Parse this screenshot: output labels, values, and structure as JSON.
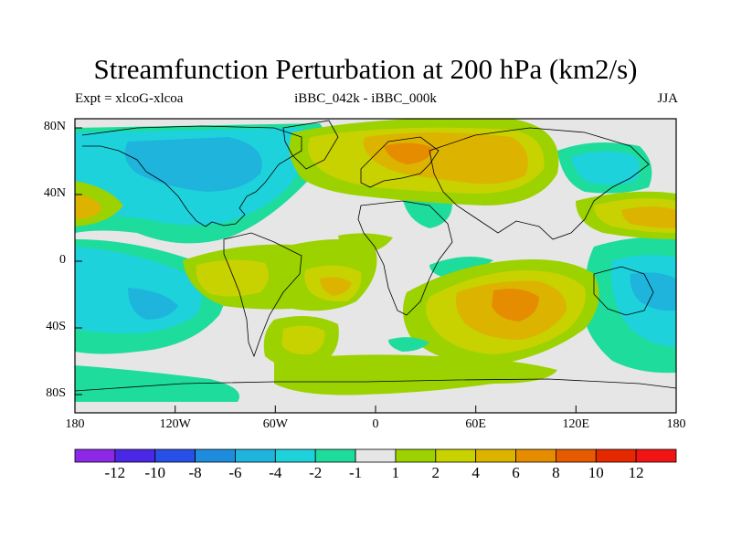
{
  "title": "Streamfunction Perturbation at 200 hPa (km2/s)",
  "subtitle_left": "Expt = xlcoG-xlcoa",
  "subtitle_center": "iBBC_042k - iBBC_000k",
  "subtitle_right": "JJA",
  "lat_labels": [
    "80N",
    "40N",
    "0",
    "40S",
    "80S"
  ],
  "lon_labels": [
    "180",
    "120W",
    "60W",
    "0",
    "60E",
    "120E",
    "180"
  ],
  "colorbar": {
    "labels": [
      "-12",
      "-10",
      "-8",
      "-6",
      "-4",
      "-2",
      "-1",
      "1",
      "2",
      "4",
      "6",
      "8",
      "10",
      "12"
    ],
    "colors": [
      "#8c28e6",
      "#4b28e6",
      "#2850e6",
      "#1e8cdc",
      "#1eb4dc",
      "#1ed2dc",
      "#1edc9b",
      "#e6e6e6",
      "#9bd200",
      "#c8d200",
      "#dcb400",
      "#e68c00",
      "#e65a00",
      "#e62800",
      "#f01414"
    ]
  },
  "fills": {
    "neutral": "#e6e6e6",
    "neg_1": "#1edc9b",
    "neg_2": "#1ed2dc",
    "neg_4": "#1eb4dc",
    "pos_1": "#9bd200",
    "pos_2": "#c8d200",
    "pos_4": "#dcb400",
    "pos_6": "#e68c00"
  }
}
